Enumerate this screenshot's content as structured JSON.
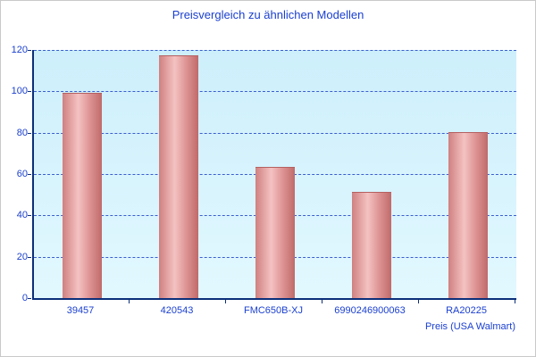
{
  "chart_data": {
    "type": "bar",
    "title": "Preisvergleich zu ähnlichen Modellen",
    "xlabel": "Preis (USA Walmart)",
    "ylabel": "",
    "categories": [
      "39457",
      "420543",
      "FMC650B-XJ",
      "6990246900063",
      "RA20225"
    ],
    "values": [
      99,
      117,
      63,
      51,
      80
    ],
    "ylim": [
      0,
      120
    ],
    "yticks": [
      0,
      20,
      40,
      60,
      80,
      100,
      120
    ],
    "grid": "horizontal-dashed",
    "legend": "none",
    "colors": {
      "title_text": "#1a3fd0",
      "axis_text": "#1a3fd0",
      "grid_line": "#3a5fd0",
      "axis_line": "#0c2f7a",
      "plot_bg": "#d8f3fd",
      "bar_main": "#d98c8c",
      "bar_highlight": "#f4c2c2",
      "bar_shadow": "#c06a6a"
    }
  }
}
